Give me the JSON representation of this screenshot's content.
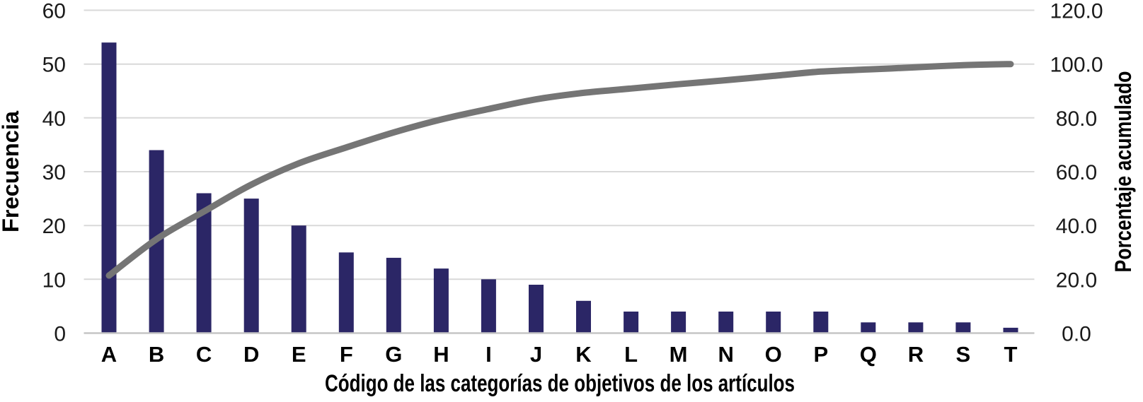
{
  "chart_data": {
    "type": "bar",
    "subtype": "pareto-combo",
    "title": "",
    "xlabel": "Código de las categorías de objetivos de los artículos",
    "ylabel_left": "Frecuencia",
    "ylabel_right": "Porcentaje acumulado",
    "categories": [
      "A",
      "B",
      "C",
      "D",
      "E",
      "F",
      "G",
      "H",
      "I",
      "J",
      "K",
      "L",
      "M",
      "N",
      "O",
      "P",
      "Q",
      "R",
      "S",
      "T"
    ],
    "series": [
      {
        "name": "Frecuencia",
        "type": "bar",
        "axis": "left",
        "color": "#2B2666",
        "values": [
          54,
          34,
          26,
          25,
          20,
          15,
          14,
          12,
          10,
          9,
          6,
          4,
          4,
          4,
          4,
          4,
          2,
          2,
          2,
          1
        ]
      },
      {
        "name": "Porcentaje acumulado",
        "type": "line",
        "axis": "right",
        "color": "#757575",
        "smooth": true,
        "values": [
          21.4,
          34.9,
          45.2,
          55.2,
          63.1,
          69.0,
          74.6,
          79.4,
          83.3,
          86.9,
          89.3,
          90.9,
          92.5,
          94.0,
          95.6,
          97.2,
          98.0,
          98.8,
          99.6,
          100.0
        ]
      }
    ],
    "axes": {
      "left": {
        "min": 0,
        "max": 60,
        "tick_step": 10,
        "tick_labels": [
          "0",
          "10",
          "20",
          "30",
          "40",
          "50",
          "60"
        ]
      },
      "right": {
        "min": 0,
        "max": 120,
        "tick_step": 20,
        "tick_labels": [
          "0.0",
          "20.0",
          "40.0",
          "60.0",
          "80.0",
          "100.0",
          "120.0"
        ]
      }
    },
    "grid": true,
    "legend_position": "none",
    "style": {
      "grid_color": "#D9D9D9",
      "axis_line_color": "#C6C6C6",
      "tick_text_color": "#1A1A1A",
      "title_text_color": "#000000",
      "background": "#FFFFFF"
    }
  }
}
